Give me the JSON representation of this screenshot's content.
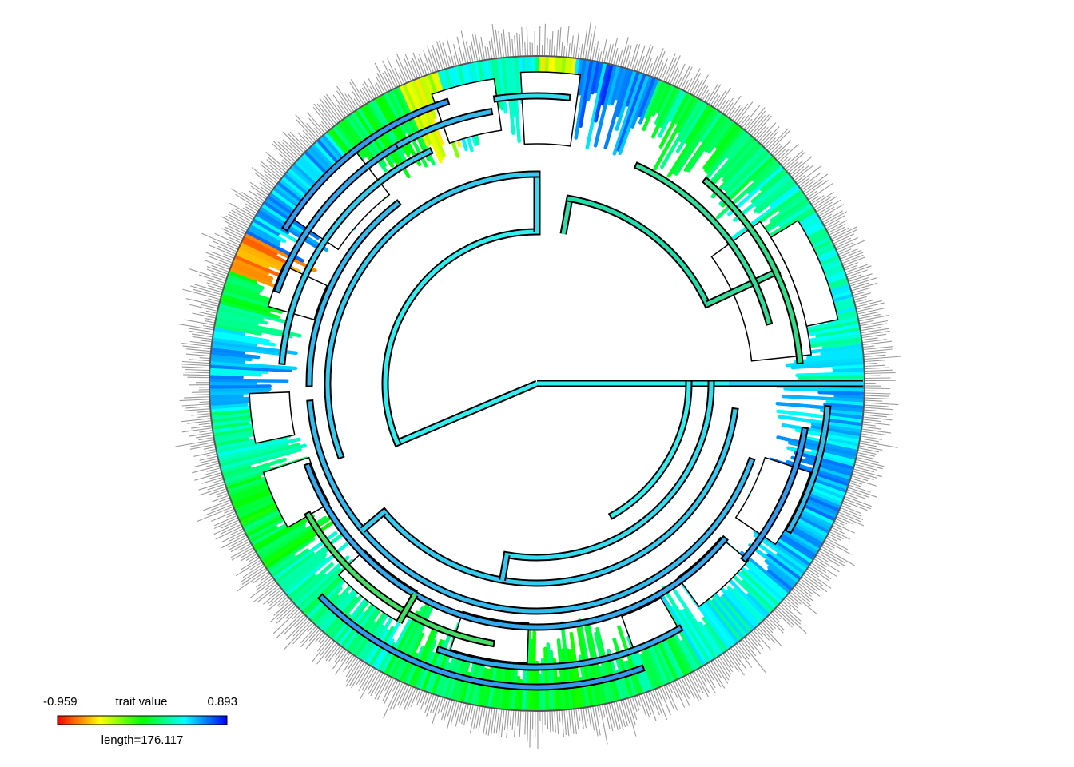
{
  "legend": {
    "min_label": "-0.959",
    "max_label": "0.893",
    "title": "trait value",
    "length_label": "length=176.117",
    "colors": [
      "#ff0000",
      "#ffff00",
      "#00ff00",
      "#00ffff",
      "#0000ff"
    ]
  },
  "tree": {
    "tip_label_color": "#9a9a9a",
    "outline_color": "#000000",
    "root_color": "#33eeee"
  }
}
